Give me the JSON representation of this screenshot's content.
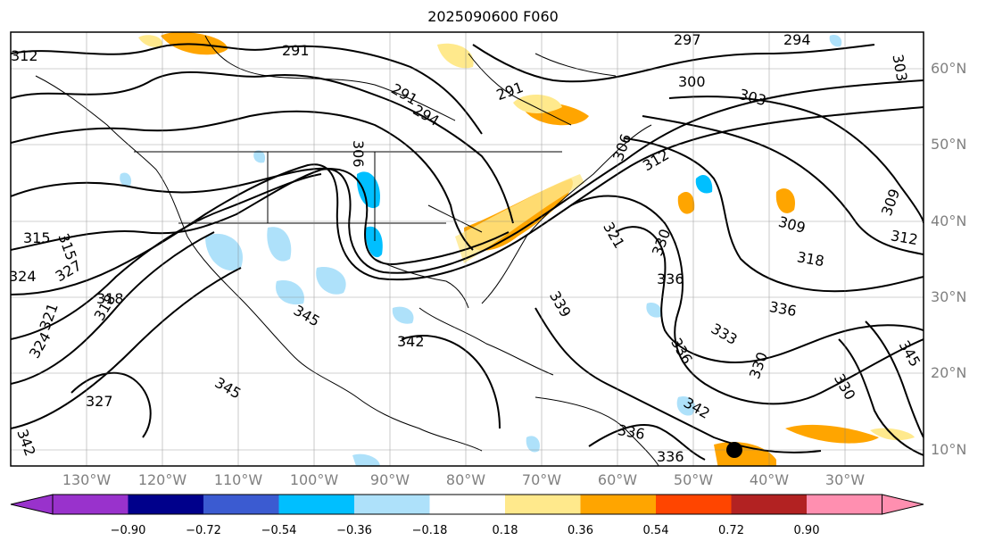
{
  "title": "2025090600 F060",
  "map": {
    "lon_labels": [
      "130°W",
      "120°W",
      "110°W",
      "100°W",
      "90°W",
      "80°W",
      "70°W",
      "60°W",
      "50°W",
      "40°W",
      "30°W"
    ],
    "lat_labels": [
      "60°N",
      "50°N",
      "40°N",
      "30°N",
      "20°N",
      "10°N"
    ],
    "contour_labels": [
      "291",
      "291",
      "291",
      "294",
      "294",
      "297",
      "300",
      "303",
      "303",
      "306",
      "306",
      "309",
      "309",
      "312",
      "312",
      "312",
      "315",
      "315",
      "318",
      "318",
      "318",
      "321",
      "321",
      "324",
      "324",
      "327",
      "327",
      "330",
      "330",
      "330",
      "333",
      "336",
      "336",
      "336",
      "336",
      "336",
      "339",
      "342",
      "342",
      "342",
      "345",
      "345",
      "345"
    ],
    "marker": "black-dot"
  },
  "colorbar": {
    "ticks": [
      "−0.90",
      "−0.72",
      "−0.54",
      "−0.36",
      "−0.18",
      "0.18",
      "0.36",
      "0.54",
      "0.72",
      "0.90"
    ],
    "colors": [
      "#9932cc",
      "#00008b",
      "#3b5bd1",
      "#00bfff",
      "#aee1fa",
      "#ffffff",
      "#ffe98c",
      "#ffa500",
      "#ff4500",
      "#b22222",
      "#ff8fb0"
    ]
  }
}
